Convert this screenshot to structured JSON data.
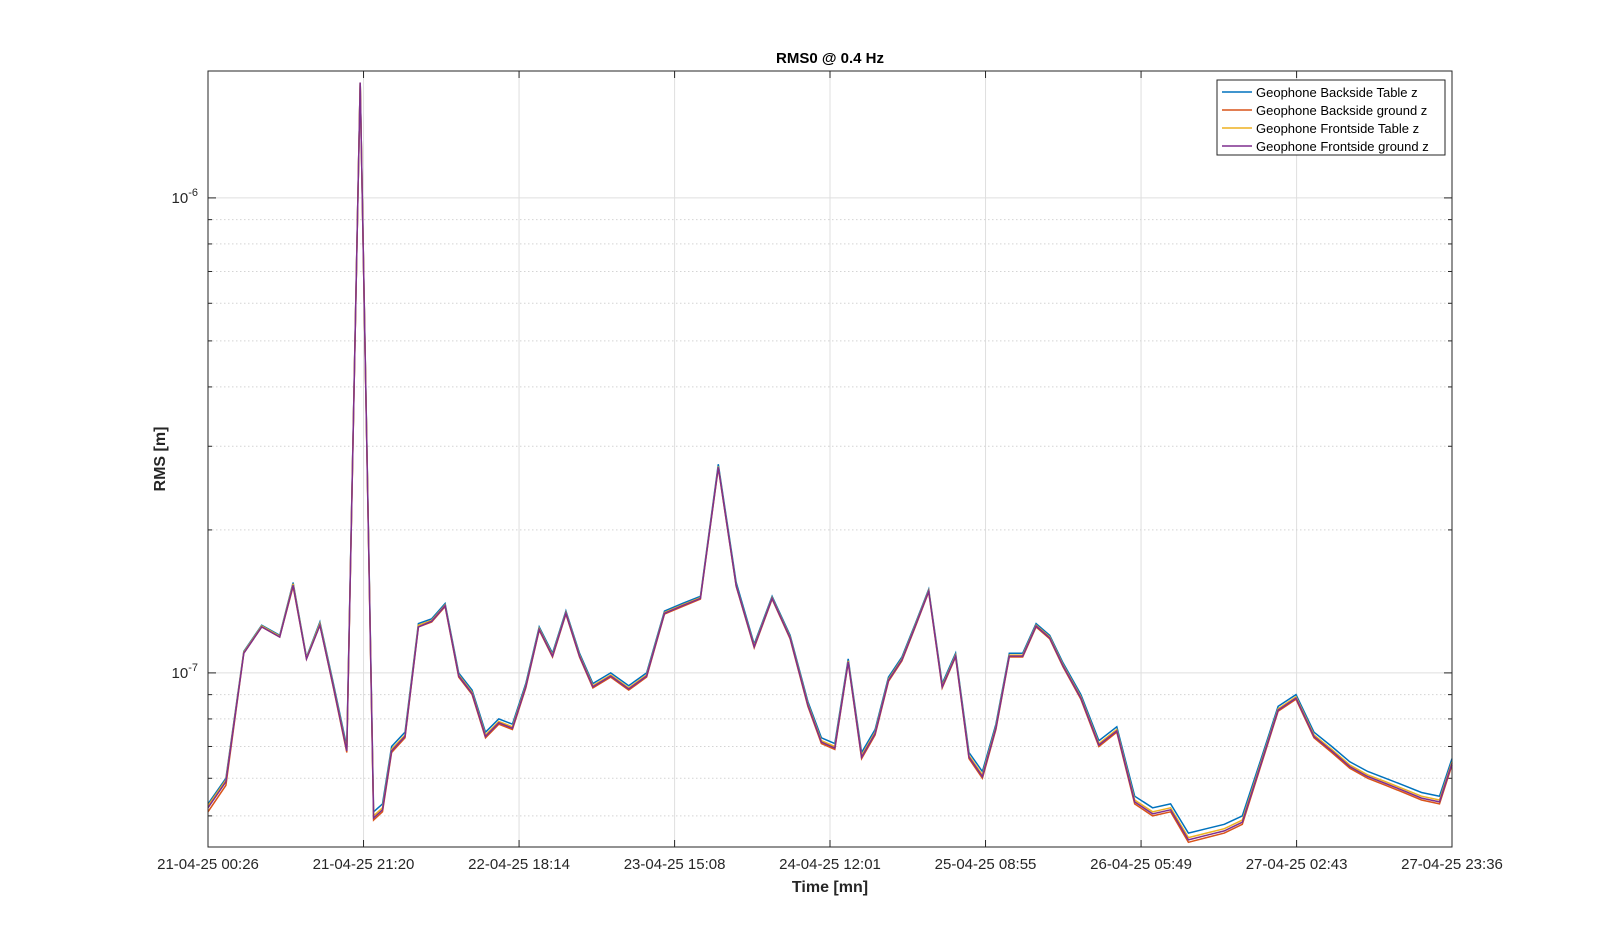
{
  "chart_data": {
    "type": "line",
    "title": "RMS0 @ 0.4 Hz",
    "xlabel": "Time [mn]",
    "ylabel": "RMS [m]",
    "yscale": "log",
    "ylim": [
      4.3e-08,
      1.85e-06
    ],
    "x_tick_labels": [
      "21-04-25 00:26",
      "21-04-25 21:20",
      "22-04-25 18:14",
      "23-04-25 15:08",
      "24-04-25 12:01",
      "25-04-25 08:55",
      "26-04-25 05:49",
      "27-04-25 02:43",
      "27-04-25 23:36"
    ],
    "y_tick_labels": [
      {
        "base": "10",
        "exp": "-7",
        "value": 1e-07
      },
      {
        "base": "10",
        "exp": "-6",
        "value": 1e-06
      }
    ],
    "grid": true,
    "legend_position": "top-right",
    "x": [
      "21-04-25 00:26",
      "21-04-25 02:50",
      "21-04-25 05:15",
      "21-04-25 07:39",
      "21-04-25 10:04",
      "21-04-25 11:52",
      "21-04-25 13:40",
      "21-04-25 15:28",
      "21-04-25 17:17",
      "21-04-25 19:05",
      "21-04-25 20:53",
      "21-04-25 22:41",
      "21-04-25 23:53",
      "22-04-25 01:06",
      "22-04-25 02:54",
      "22-04-25 04:42",
      "22-04-25 06:30",
      "22-04-25 08:18",
      "22-04-25 10:07",
      "22-04-25 11:55",
      "22-04-25 13:43",
      "22-04-25 15:31",
      "22-04-25 17:20",
      "22-04-25 19:08",
      "22-04-25 20:56",
      "22-04-25 22:44",
      "23-04-25 00:32",
      "23-04-25 02:21",
      "23-04-25 04:09",
      "23-04-25 06:33",
      "23-04-25 08:58",
      "23-04-25 11:22",
      "23-04-25 13:47",
      "23-04-25 16:11",
      "23-04-25 18:36",
      "23-04-25 21:00",
      "23-04-25 23:25",
      "24-04-25 01:50",
      "24-04-25 04:14",
      "24-04-25 06:39",
      "24-04-25 09:03",
      "24-04-25 10:52",
      "24-04-25 12:40",
      "24-04-25 14:28",
      "24-04-25 16:16",
      "24-04-25 18:05",
      "24-04-25 19:53",
      "24-04-25 21:41",
      "24-04-25 23:29",
      "25-04-25 01:17",
      "25-04-25 03:06",
      "25-04-25 04:54",
      "25-04-25 06:42",
      "25-04-25 08:30",
      "25-04-25 10:19",
      "25-04-25 12:07",
      "25-04-25 13:55",
      "25-04-25 15:43",
      "25-04-25 17:32",
      "25-04-25 19:20",
      "25-04-25 21:44",
      "26-04-25 00:09",
      "26-04-25 02:33",
      "26-04-25 04:58",
      "26-04-25 07:22",
      "26-04-25 09:47",
      "26-04-25 12:11",
      "26-04-25 14:36",
      "26-04-25 17:00",
      "26-04-25 19:25",
      "26-04-25 21:49",
      "27-04-25 00:14",
      "27-04-25 02:38",
      "27-04-25 05:03",
      "27-04-25 07:27",
      "27-04-25 09:52",
      "27-04-25 12:17",
      "27-04-25 14:41",
      "27-04-25 17:06",
      "27-04-25 19:30",
      "27-04-25 21:55",
      "27-04-25 23:36"
    ],
    "series": [
      {
        "name": "Geophone Backside Table z",
        "color": "#0072BD",
        "values": [
          5.3e-08,
          6e-08,
          1.11e-07,
          1.26e-07,
          1.2e-07,
          1.55e-07,
          1.08e-07,
          1.28e-07,
          9.5e-08,
          7e-08,
          1.75e-06,
          5.1e-08,
          5.3e-08,
          7e-08,
          7.5e-08,
          1.27e-07,
          1.3e-07,
          1.4e-07,
          1e-07,
          9.2e-08,
          7.5e-08,
          8e-08,
          7.8e-08,
          9.5e-08,
          1.25e-07,
          1.1e-07,
          1.35e-07,
          1.1e-07,
          9.5e-08,
          1e-07,
          9.4e-08,
          1e-07,
          1.35e-07,
          1.4e-07,
          1.45e-07,
          2.75e-07,
          1.55e-07,
          1.15e-07,
          1.45e-07,
          1.2e-07,
          8.7e-08,
          7.3e-08,
          7.1e-08,
          1.07e-07,
          6.8e-08,
          7.6e-08,
          9.8e-08,
          1.08e-07,
          1.27e-07,
          1.5e-07,
          9.5e-08,
          1.1e-07,
          6.8e-08,
          6.2e-08,
          7.8e-08,
          1.1e-07,
          1.1e-07,
          1.27e-07,
          1.2e-07,
          1.05e-07,
          9e-08,
          7.2e-08,
          7.7e-08,
          5.5e-08,
          5.2e-08,
          5.3e-08,
          4.6e-08,
          4.7e-08,
          4.8e-08,
          5e-08,
          6.5e-08,
          8.5e-08,
          9e-08,
          7.5e-08,
          7e-08,
          6.5e-08,
          6.2e-08,
          6e-08,
          5.8e-08,
          5.6e-08,
          5.5e-08,
          6.6e-08
        ]
      },
      {
        "name": "Geophone Backside ground z",
        "color": "#D95319",
        "values": [
          5.1e-08,
          5.8e-08,
          1.1e-07,
          1.25e-07,
          1.19e-07,
          1.52e-07,
          1.07e-07,
          1.26e-07,
          9.3e-08,
          6.8e-08,
          1.75e-06,
          4.9e-08,
          5.1e-08,
          6.8e-08,
          7.3e-08,
          1.25e-07,
          1.28e-07,
          1.38e-07,
          9.8e-08,
          9e-08,
          7.3e-08,
          7.8e-08,
          7.6e-08,
          9.3e-08,
          1.23e-07,
          1.08e-07,
          1.33e-07,
          1.08e-07,
          9.3e-08,
          9.8e-08,
          9.2e-08,
          9.8e-08,
          1.33e-07,
          1.38e-07,
          1.43e-07,
          2.7e-07,
          1.52e-07,
          1.13e-07,
          1.43e-07,
          1.18e-07,
          8.5e-08,
          7.1e-08,
          6.9e-08,
          1.05e-07,
          6.6e-08,
          7.4e-08,
          9.6e-08,
          1.06e-07,
          1.25e-07,
          1.48e-07,
          9.3e-08,
          1.08e-07,
          6.6e-08,
          6e-08,
          7.6e-08,
          1.08e-07,
          1.08e-07,
          1.25e-07,
          1.18e-07,
          1.03e-07,
          8.8e-08,
          7e-08,
          7.5e-08,
          5.3e-08,
          5e-08,
          5.1e-08,
          4.4e-08,
          4.5e-08,
          4.6e-08,
          4.8e-08,
          6.3e-08,
          8.3e-08,
          8.8e-08,
          7.3e-08,
          6.8e-08,
          6.3e-08,
          6e-08,
          5.8e-08,
          5.6e-08,
          5.4e-08,
          5.3e-08,
          6.4e-08
        ]
      },
      {
        "name": "Geophone Frontside Table z",
        "color": "#EDB120",
        "values": [
          5.25e-08,
          5.95e-08,
          1.105e-07,
          1.255e-07,
          1.195e-07,
          1.54e-07,
          1.075e-07,
          1.27e-07,
          9.4e-08,
          6.9e-08,
          1.75e-06,
          5e-08,
          5.2e-08,
          6.9e-08,
          7.4e-08,
          1.26e-07,
          1.29e-07,
          1.39e-07,
          9.9e-08,
          9.1e-08,
          7.4e-08,
          7.9e-08,
          7.7e-08,
          9.4e-08,
          1.24e-07,
          1.09e-07,
          1.34e-07,
          1.09e-07,
          9.4e-08,
          9.9e-08,
          9.3e-08,
          9.9e-08,
          1.34e-07,
          1.39e-07,
          1.44e-07,
          2.72e-07,
          1.53e-07,
          1.14e-07,
          1.44e-07,
          1.19e-07,
          8.6e-08,
          7.2e-08,
          7e-08,
          1.06e-07,
          6.7e-08,
          7.5e-08,
          9.7e-08,
          1.07e-07,
          1.26e-07,
          1.49e-07,
          9.4e-08,
          1.09e-07,
          6.7e-08,
          6.1e-08,
          7.7e-08,
          1.09e-07,
          1.09e-07,
          1.26e-07,
          1.19e-07,
          1.04e-07,
          8.9e-08,
          7.1e-08,
          7.6e-08,
          5.4e-08,
          5.1e-08,
          5.2e-08,
          4.5e-08,
          4.6e-08,
          4.7e-08,
          4.9e-08,
          6.4e-08,
          8.4e-08,
          8.9e-08,
          7.4e-08,
          6.9e-08,
          6.4e-08,
          6.1e-08,
          5.9e-08,
          5.7e-08,
          5.5e-08,
          5.4e-08,
          6.5e-08
        ]
      },
      {
        "name": "Geophone Frontside ground z",
        "color": "#7E2F8E",
        "values": [
          5.2e-08,
          5.9e-08,
          1.1e-07,
          1.25e-07,
          1.19e-07,
          1.53e-07,
          1.07e-07,
          1.26e-07,
          9.35e-08,
          6.85e-08,
          1.75e-06,
          4.95e-08,
          5.15e-08,
          6.85e-08,
          7.35e-08,
          1.25e-07,
          1.285e-07,
          1.385e-07,
          9.85e-08,
          9.05e-08,
          7.35e-08,
          7.85e-08,
          7.65e-08,
          9.35e-08,
          1.235e-07,
          1.085e-07,
          1.335e-07,
          1.085e-07,
          9.35e-08,
          9.85e-08,
          9.25e-08,
          9.85e-08,
          1.335e-07,
          1.385e-07,
          1.435e-07,
          2.71e-07,
          1.525e-07,
          1.135e-07,
          1.435e-07,
          1.185e-07,
          8.55e-08,
          7.15e-08,
          6.95e-08,
          1.055e-07,
          6.65e-08,
          7.45e-08,
          9.65e-08,
          1.065e-07,
          1.255e-07,
          1.485e-07,
          9.35e-08,
          1.085e-07,
          6.65e-08,
          6.05e-08,
          7.65e-08,
          1.085e-07,
          1.085e-07,
          1.255e-07,
          1.185e-07,
          1.035e-07,
          8.85e-08,
          7.05e-08,
          7.55e-08,
          5.35e-08,
          5.05e-08,
          5.15e-08,
          4.45e-08,
          4.55e-08,
          4.65e-08,
          4.85e-08,
          6.35e-08,
          8.35e-08,
          8.85e-08,
          7.35e-08,
          6.85e-08,
          6.35e-08,
          6.05e-08,
          5.85e-08,
          5.65e-08,
          5.45e-08,
          5.35e-08,
          6.45e-08
        ]
      }
    ]
  }
}
